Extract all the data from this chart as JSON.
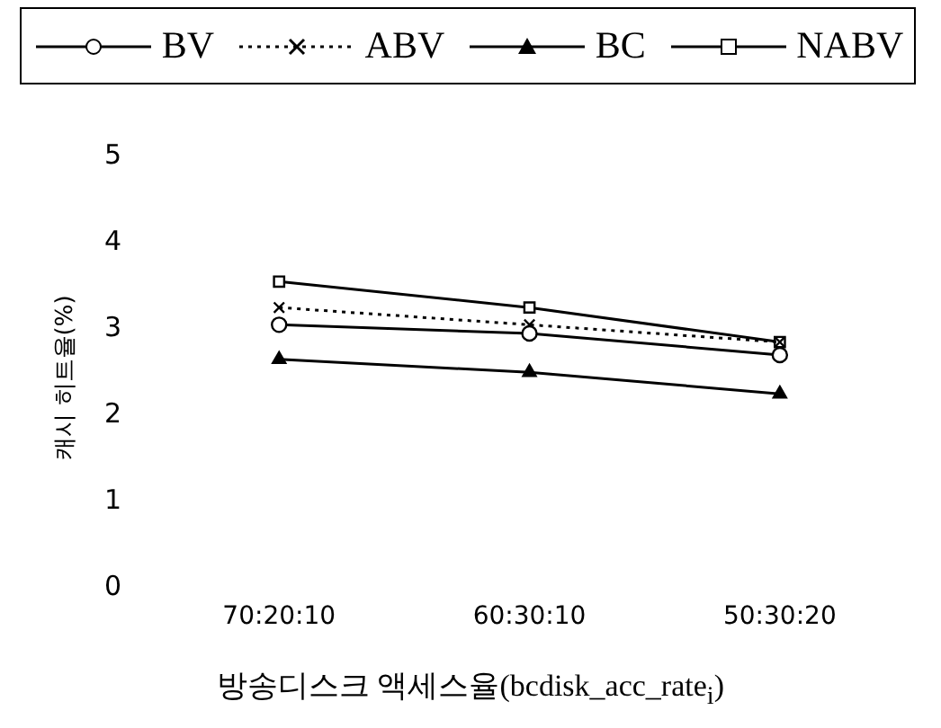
{
  "chart_data": {
    "type": "line",
    "xlabel": "방송디스크 액세스율(bcdisk_acc_rate$_{i}$)",
    "ylabel": "캐시 히트율(%)",
    "categories": [
      "70:20:10",
      "60:30:10",
      "50:30:20"
    ],
    "ylim": [
      0,
      5
    ],
    "yticks": [
      0,
      1,
      2,
      3,
      4,
      5
    ],
    "grid": false,
    "legend": "top",
    "series": [
      {
        "name": "BV",
        "color": "#000000",
        "marker": "circle",
        "line_style": "solid",
        "values": [
          3.05,
          2.95,
          2.7
        ]
      },
      {
        "name": "ABV",
        "color": "#000000",
        "marker": "cross",
        "line_style": "dotted",
        "values": [
          3.25,
          3.05,
          2.85
        ]
      },
      {
        "name": "BC",
        "color": "#000000",
        "marker": "triangle",
        "line_style": "solid",
        "values": [
          2.65,
          2.5,
          2.25
        ]
      },
      {
        "name": "NABV",
        "color": "#000000",
        "marker": "square",
        "line_style": "solid",
        "values": [
          3.55,
          3.25,
          2.85
        ]
      }
    ]
  }
}
